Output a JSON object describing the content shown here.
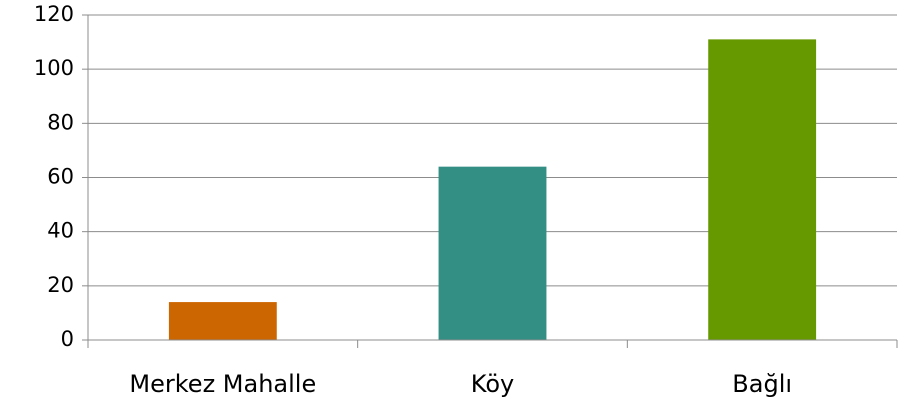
{
  "chart_data": {
    "type": "bar",
    "categories": [
      "Merkez Mahalle",
      "Köy",
      "Bağlı"
    ],
    "values": [
      14,
      64,
      111
    ],
    "colors": [
      "#cc6600",
      "#338e84",
      "#669900"
    ],
    "ylim": [
      0,
      120
    ],
    "yticks": [
      0,
      20,
      40,
      60,
      80,
      100,
      120
    ],
    "grid": true
  }
}
